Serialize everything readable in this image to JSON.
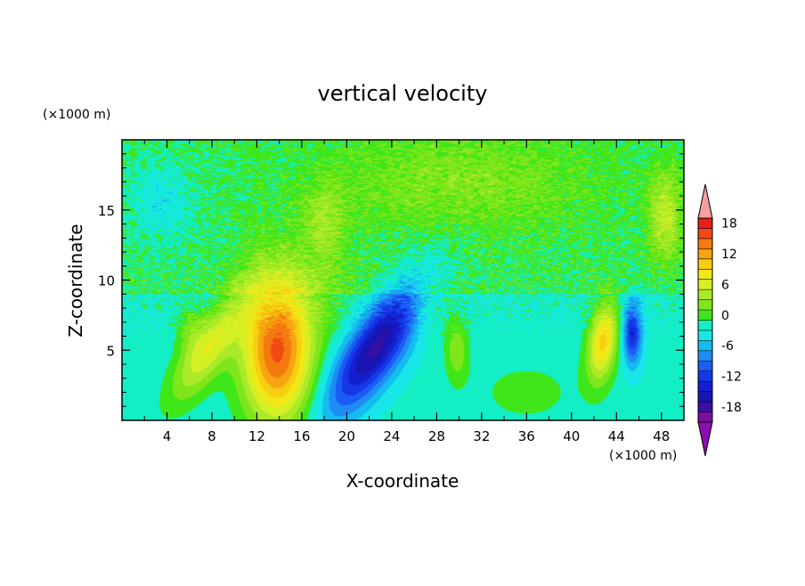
{
  "chart_data": {
    "type": "heatmap",
    "title": "vertical velocity",
    "xlabel": "X-coordinate",
    "ylabel": "Z-coordinate",
    "x_unit": "(×1000 m)",
    "y_unit": "(×1000 m)",
    "xlim": [
      0,
      50
    ],
    "ylim": [
      0,
      20
    ],
    "xticks": [
      4,
      8,
      12,
      16,
      20,
      24,
      28,
      32,
      36,
      40,
      44,
      48
    ],
    "yticks": [
      5,
      10,
      15
    ],
    "background_value": -1.5,
    "features": [
      {
        "x": 13.8,
        "z": 5.0,
        "sx": 2.2,
        "sz": 3.6,
        "rot": 0,
        "amp": 18
      },
      {
        "x": 7.6,
        "z": 5.0,
        "sx": 1.2,
        "sz": 3.2,
        "rot": 40,
        "amp": 9
      },
      {
        "x": 6.0,
        "z": 6.6,
        "sx": 0.9,
        "sz": 1.2,
        "rot": 0,
        "amp": 3
      },
      {
        "x": 22.6,
        "z": 5.2,
        "sx": 1.5,
        "sz": 4.2,
        "rot": 42,
        "amp": -15
      },
      {
        "x": 42.8,
        "z": 5.6,
        "sx": 0.9,
        "sz": 2.0,
        "rot": 10,
        "amp": 12
      },
      {
        "x": 45.4,
        "z": 6.2,
        "sx": 0.6,
        "sz": 1.6,
        "rot": 0,
        "amp": -11
      },
      {
        "x": 29.8,
        "z": 5.0,
        "sx": 0.7,
        "sz": 1.5,
        "rot": 0,
        "amp": 5
      },
      {
        "x": 48.3,
        "z": 14.5,
        "sx": 1.0,
        "sz": 2.2,
        "rot": 0,
        "amp": 6
      },
      {
        "x": 18.0,
        "z": 14.0,
        "sx": 1.3,
        "sz": 2.0,
        "rot": 0,
        "amp": 4
      },
      {
        "x": 27.0,
        "z": 8.0,
        "sx": 1.5,
        "sz": 1.5,
        "rot": 0,
        "amp": 3
      },
      {
        "x": 3.5,
        "z": 15.5,
        "sx": 2.0,
        "sz": 2.0,
        "rot": 0,
        "amp": -3
      },
      {
        "x": 18.0,
        "z": 8.5,
        "sx": 2.5,
        "sz": 2.0,
        "rot": 0,
        "amp": 2
      },
      {
        "x": 30.0,
        "z": 17.0,
        "sx": 8.0,
        "sz": 2.5,
        "rot": 0,
        "amp": 3
      },
      {
        "x": 36.0,
        "z": 2.0,
        "sx": 4.0,
        "sz": 2.0,
        "rot": 0,
        "amp": 2
      }
    ],
    "colorbar": {
      "levels": [
        -20,
        -18,
        -16,
        -14,
        -12,
        -10,
        -8,
        -6,
        -4,
        -2,
        0,
        2,
        4,
        6,
        8,
        10,
        12,
        14,
        16,
        18,
        20
      ],
      "colors": [
        "#7a0fa0",
        "#3a10a0",
        "#1a14b0",
        "#1420d0",
        "#1438e6",
        "#1a5cf4",
        "#1e8cf2",
        "#14bcf0",
        "#18e6e8",
        "#14eec4",
        "#3fe61a",
        "#7ee61a",
        "#aaea28",
        "#d4ef24",
        "#f2e818",
        "#f8ce10",
        "#f6a410",
        "#f47a10",
        "#f04a14",
        "#e81e14"
      ],
      "extend_low_color": "#8a0fb0",
      "extend_high_color": "#f4a0a0",
      "tick_labels": [
        "18",
        "12",
        "6",
        "0",
        "-6",
        "-12",
        "-18"
      ]
    }
  }
}
